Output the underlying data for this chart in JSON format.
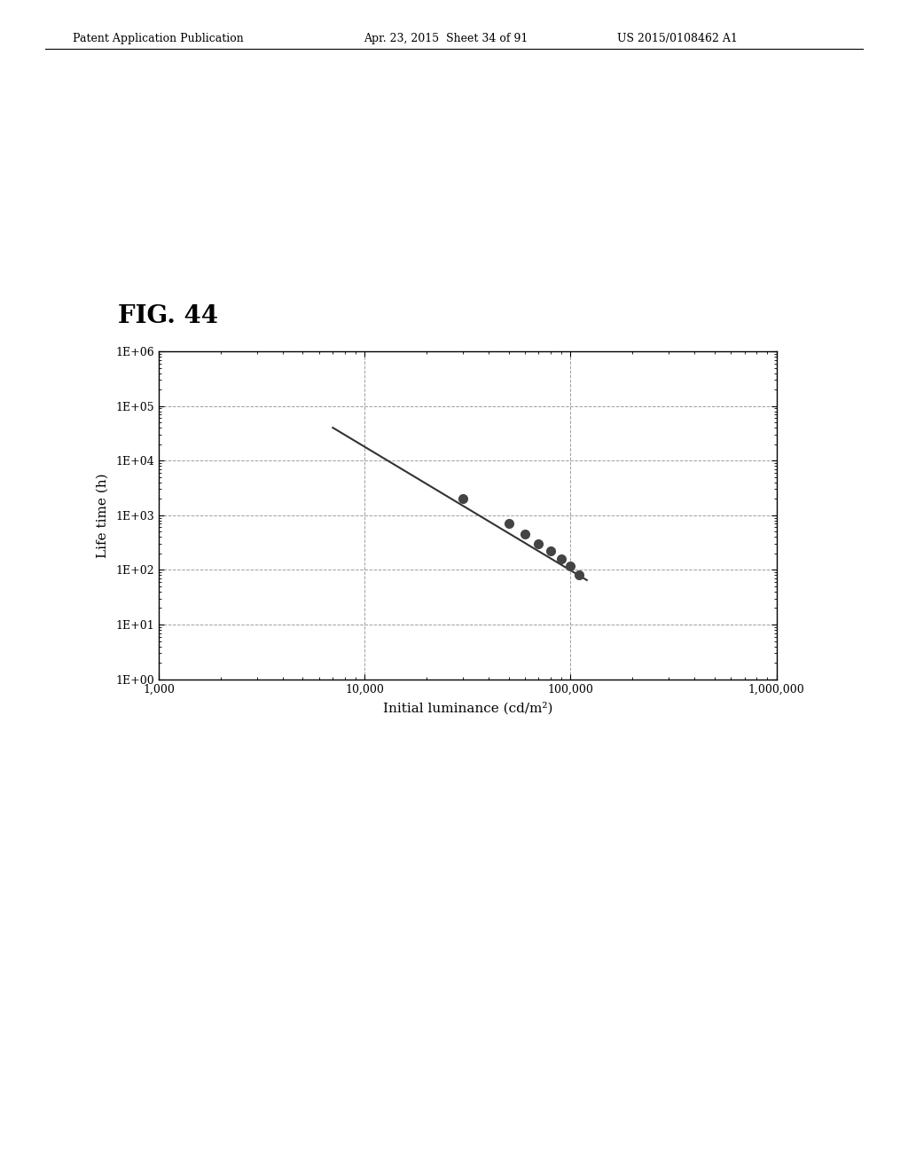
{
  "title": "FIG. 44",
  "xlabel": "Initial luminance (cd/m²)",
  "ylabel": "Life time (h)",
  "xticks": [
    1000,
    10000,
    100000,
    1000000
  ],
  "xtick_labels": [
    "1,000",
    "10,000",
    "100,000",
    "1,000,000"
  ],
  "yticks": [
    1,
    10,
    100,
    1000,
    10000,
    100000,
    1000000
  ],
  "ytick_labels": [
    "1E+00",
    "1E+01",
    "1E+02",
    "1E+03",
    "1E+04",
    "1E+05",
    "1E+06"
  ],
  "data_points_x": [
    30000,
    50000,
    60000,
    70000,
    80000,
    90000,
    100000,
    110000
  ],
  "data_points_y": [
    2000,
    700,
    450,
    300,
    220,
    160,
    120,
    80
  ],
  "line_start_x": 7000,
  "line_start_y": 40000,
  "line_end_x": 120000,
  "line_end_y": 65,
  "line_color": "#333333",
  "marker_color": "#444444",
  "marker_size": 7,
  "line_width": 1.5,
  "background_color": "#ffffff",
  "grid_color": "#888888",
  "header_left": "Patent Application Publication",
  "header_mid": "Apr. 23, 2015  Sheet 34 of 91",
  "header_right": "US 2015/0108462 A1",
  "figure_title": "FIG. 44",
  "figure_title_fontsize": 20,
  "header_fontsize": 9,
  "axis_label_fontsize": 11,
  "tick_fontsize": 9
}
